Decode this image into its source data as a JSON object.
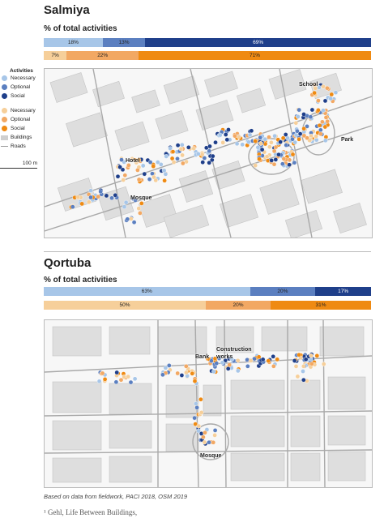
{
  "sections": [
    {
      "title": "Salmiya",
      "subtitle": "% of total activities",
      "bar_rows": [
        [
          {
            "label": "18%",
            "value": 18,
            "color": "#a7c6e8"
          },
          {
            "label": "13%",
            "value": 13,
            "color": "#5b7fc0"
          },
          {
            "label": "69%",
            "value": 69,
            "color": "#1f3f8a"
          }
        ],
        [
          {
            "label": "7%",
            "value": 7,
            "color": "#f6cf9a"
          },
          {
            "label": "22%",
            "value": 22,
            "color": "#f2a863"
          },
          {
            "label": "71%",
            "value": 71,
            "color": "#ef8a12"
          }
        ]
      ],
      "map_labels": [
        "School",
        "Park",
        "Hotel",
        "Mosque"
      ]
    },
    {
      "title": "Qortuba",
      "subtitle": "% of total activities",
      "bar_rows": [
        [
          {
            "label": "63%",
            "value": 63,
            "color": "#a7c6e8"
          },
          {
            "label": "20%",
            "value": 20,
            "color": "#5b7fc0"
          },
          {
            "label": "17%",
            "value": 17,
            "color": "#1f3f8a"
          }
        ],
        [
          {
            "label": "50%",
            "value": 50,
            "color": "#f6cf9a"
          },
          {
            "label": "20%",
            "value": 20,
            "color": "#f2a863"
          },
          {
            "label": "31%",
            "value": 31,
            "color": "#ef8a12"
          }
        ]
      ],
      "map_labels": [
        "Bank",
        "Construction works",
        "Mosque"
      ]
    }
  ],
  "legend": {
    "heading": "Activities",
    "blue_items": [
      {
        "label": "Necessary",
        "color": "#a7c6e8"
      },
      {
        "label": "Optional",
        "color": "#5b7fc0"
      },
      {
        "label": "Social",
        "color": "#1f3f8a"
      }
    ],
    "orange_items": [
      {
        "label": "Necessary",
        "color": "#f6cf9a"
      },
      {
        "label": "Optional",
        "color": "#f2a863"
      },
      {
        "label": "Social",
        "color": "#ef8a12"
      }
    ],
    "buildings": "Buildings",
    "roads": "Roads",
    "scale": "100 m"
  },
  "source": "Based on data from fieldwork, PACI 2018, OSM 2019",
  "footnote": "¹ Gehl, Life Between Buildings,",
  "chart_data": [
    {
      "type": "bar",
      "title": "Salmiya",
      "subtitle": "% of total activities",
      "categories": [
        "Necessary",
        "Optional",
        "Social"
      ],
      "series": [
        {
          "values": [
            18,
            13,
            69
          ]
        },
        {
          "values": [
            7,
            22,
            71
          ]
        }
      ],
      "stacked": true,
      "orientation": "horizontal"
    },
    {
      "type": "bar",
      "title": "Qortuba",
      "subtitle": "% of total activities",
      "categories": [
        "Necessary",
        "Optional",
        "Social"
      ],
      "series": [
        {
          "values": [
            63,
            20,
            17
          ]
        },
        {
          "values": [
            50,
            20,
            31
          ]
        }
      ],
      "stacked": true,
      "orientation": "horizontal"
    }
  ]
}
